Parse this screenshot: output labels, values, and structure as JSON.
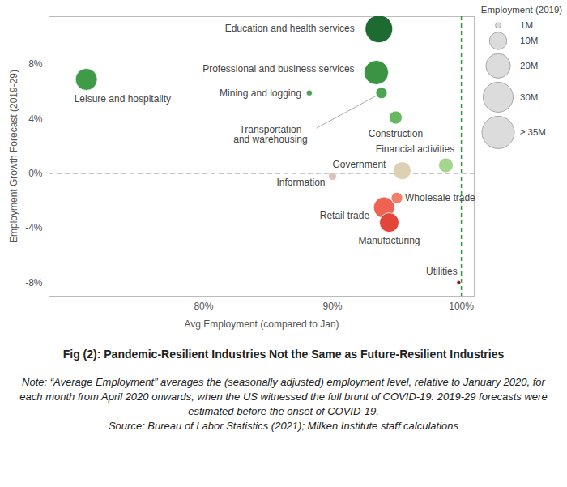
{
  "chart_data": {
    "type": "scatter",
    "title": "Fig (2): Pandemic-Resilient Industries Not the Same as Future-Resilient Industries",
    "note": "Note: “Average Employment” averages the (seasonally adjusted) employment level, relative to January 2020, for each month from April 2020 onwards, when the US witnessed the full brunt of COVID-19. 2019-29 forecasts were estimated before the onset of COVID-19.",
    "source": "Source: Bureau of Labor Statistics (2021); Milken Institute staff calculations",
    "x_label": "Avg Employment (compared to Jan)",
    "y_label": "Employment Growth Forecast (2019-29)",
    "categories": [
      "Leisure and hospitality",
      "Education and health services",
      "Professional and business services",
      "Mining and logging",
      "Transportation\nand warehousing",
      "Construction",
      "Financial activities",
      "Government",
      "Information",
      "Wholesale trade",
      "Retail trade",
      "Manufacturing",
      "Utilities"
    ],
    "x": [
      70.9,
      93.6,
      93.4,
      88.2,
      93.8,
      94.9,
      98.8,
      95.4,
      90.0,
      95.0,
      94.0,
      94.4,
      99.8
    ],
    "values": [
      6.9,
      10.6,
      7.4,
      5.9,
      5.9,
      4.1,
      0.6,
      0.2,
      -0.2,
      -1.8,
      -2.5,
      -3.6,
      -8.0
    ],
    "sizes": [
      16.0,
      25.3,
      19.7,
      1.2,
      4.3,
      5.6,
      7.1,
      10.6,
      2.2,
      4.3,
      14.8,
      12.6,
      0.55
    ],
    "colors": [
      "#3f9b47",
      "#1d6b33",
      "#3a9443",
      "#4aa04f",
      "#4da553",
      "#67b85f",
      "#a6d58f",
      "#dcd0b5",
      "#d9c4b8",
      "#f07f6e",
      "#ee6353",
      "#e2463a",
      "#8b1a1a"
    ],
    "size_legend": {
      "title": "Employment (2019)",
      "values": [
        1,
        10,
        20,
        30,
        35
      ],
      "labels": [
        "1M",
        "10M",
        "20M",
        "30M",
        "≥ 35M"
      ]
    },
    "xlim": [
      68,
      101
    ],
    "xticks": [
      {
        "value": 80,
        "label": "80%"
      },
      {
        "value": 90,
        "label": "90%"
      },
      {
        "value": 100,
        "label": "100%"
      }
    ],
    "ylim": [
      -9,
      11.5
    ],
    "yticks": [
      {
        "value": -8,
        "label": "-8%"
      },
      {
        "value": -4,
        "label": "-4%"
      },
      {
        "value": 0,
        "label": "0%"
      },
      {
        "value": 4,
        "label": "4%"
      },
      {
        "value": 8,
        "label": "8%"
      }
    ],
    "grid": false,
    "reference_lines": {
      "x": 100,
      "y": 0
    }
  }
}
